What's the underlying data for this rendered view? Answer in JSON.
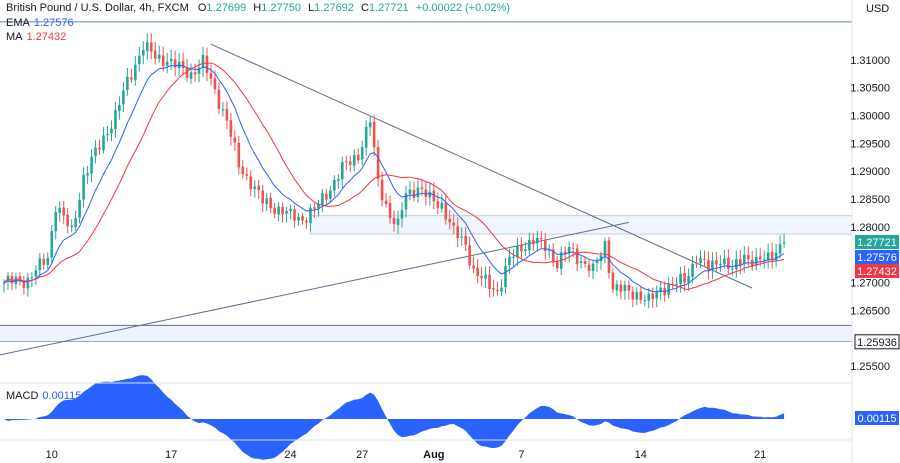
{
  "header": {
    "symbol": "British Pound / U.S. Dollar, 4h, FXCM",
    "o_label": "O",
    "o_value": "1.27699",
    "h_label": "H",
    "h_value": "1.27750",
    "l_label": "L",
    "l_value": "1.27692",
    "c_label": "C",
    "c_value": "1.27721",
    "change": "+0.00022 (+0.02%)",
    "currency": "USD"
  },
  "indicators": {
    "ema_label": "EMA",
    "ema_value": "1.27576",
    "ma_label": "MA",
    "ma_value": "1.27432",
    "macd_label": "MACD",
    "macd_value": "0.00115"
  },
  "colors": {
    "up": "#26a69a",
    "down": "#ef5350",
    "ema": "#2962ff",
    "ma": "#f23645",
    "macd_fill": "#2962ff",
    "trendline": "#5d6e8c",
    "tag_price": "#26a69a",
    "tag_ema": "#2962ff",
    "tag_ma": "#f23645",
    "tag_macd": "#2962ff"
  },
  "chart_data": {
    "type": "candlestick",
    "y_ticks": [
      1.31,
      1.305,
      1.3,
      1.295,
      1.29,
      1.285,
      1.28,
      1.275,
      1.27,
      1.265,
      1.26,
      1.255
    ],
    "y_tick_labels": [
      "1.31000",
      "1.30500",
      "1.30000",
      "1.29500",
      "1.29000",
      "1.28500",
      "1.28000",
      "",
      "1.27000",
      "1.26500",
      "",
      "1.25500"
    ],
    "ylim": [
      1.2525,
      1.3175
    ],
    "x_tick_labels": [
      {
        "label": "10",
        "index": 12
      },
      {
        "label": "17",
        "index": 42
      },
      {
        "label": "24",
        "index": 72
      },
      {
        "label": "27",
        "index": 90
      },
      {
        "label": "Aug",
        "index": 108,
        "bold": true
      },
      {
        "label": "7",
        "index": 130
      },
      {
        "label": "14",
        "index": 160
      },
      {
        "label": "21",
        "index": 190
      }
    ],
    "price_tags": [
      {
        "label": "1.27721",
        "value": 1.27721,
        "role": "price"
      },
      {
        "label": "1.27576",
        "value": 1.27576,
        "role": "ema"
      },
      {
        "label": "1.27432",
        "value": 1.27432,
        "role": "ma"
      },
      {
        "label": "1.25936",
        "value": 1.25936,
        "role": "level"
      }
    ],
    "support_zone": [
      1.2594,
      1.2623
    ],
    "resistance_zone": [
      1.2787,
      1.282
    ],
    "macd_tag": "0.00115",
    "waypoints_close": [
      [
        0,
        1.27
      ],
      [
        6,
        1.2705
      ],
      [
        11,
        1.2745
      ],
      [
        13,
        1.284
      ],
      [
        17,
        1.279
      ],
      [
        20,
        1.289
      ],
      [
        25,
        1.296
      ],
      [
        28,
        1.3
      ],
      [
        31,
        1.306
      ],
      [
        35,
        1.3125
      ],
      [
        38,
        1.3105
      ],
      [
        41,
        1.31
      ],
      [
        44,
        1.3085
      ],
      [
        47,
        1.3075
      ],
      [
        50,
        1.3095
      ],
      [
        53,
        1.3045
      ],
      [
        56,
        1.299
      ],
      [
        59,
        1.291
      ],
      [
        62,
        1.288
      ],
      [
        65,
        1.2845
      ],
      [
        68,
        1.2835
      ],
      [
        72,
        1.282
      ],
      [
        75,
        1.2815
      ],
      [
        78,
        1.283
      ],
      [
        82,
        1.287
      ],
      [
        85,
        1.2905
      ],
      [
        89,
        1.293
      ],
      [
        92,
        1.299
      ],
      [
        94,
        1.288
      ],
      [
        97,
        1.282
      ],
      [
        99,
        1.28
      ],
      [
        101,
        1.286
      ],
      [
        104,
        1.287
      ],
      [
        107,
        1.285
      ],
      [
        110,
        1.284
      ],
      [
        113,
        1.279
      ],
      [
        116,
        1.277
      ],
      [
        118,
        1.272
      ],
      [
        121,
        1.27
      ],
      [
        124,
        1.2685
      ],
      [
        127,
        1.274
      ],
      [
        130,
        1.2765
      ],
      [
        133,
        1.2775
      ],
      [
        136,
        1.2765
      ],
      [
        139,
        1.2735
      ],
      [
        142,
        1.276
      ],
      [
        145,
        1.274
      ],
      [
        148,
        1.272
      ],
      [
        151,
        1.277
      ],
      [
        153,
        1.269
      ],
      [
        156,
        1.2685
      ],
      [
        159,
        1.268
      ],
      [
        162,
        1.2665
      ],
      [
        165,
        1.269
      ],
      [
        168,
        1.2695
      ],
      [
        171,
        1.2705
      ],
      [
        174,
        1.2745
      ],
      [
        177,
        1.2725
      ],
      [
        180,
        1.2745
      ],
      [
        183,
        1.272
      ],
      [
        186,
        1.275
      ],
      [
        189,
        1.2735
      ],
      [
        192,
        1.2745
      ],
      [
        196,
        1.2772
      ]
    ],
    "count": 197
  }
}
